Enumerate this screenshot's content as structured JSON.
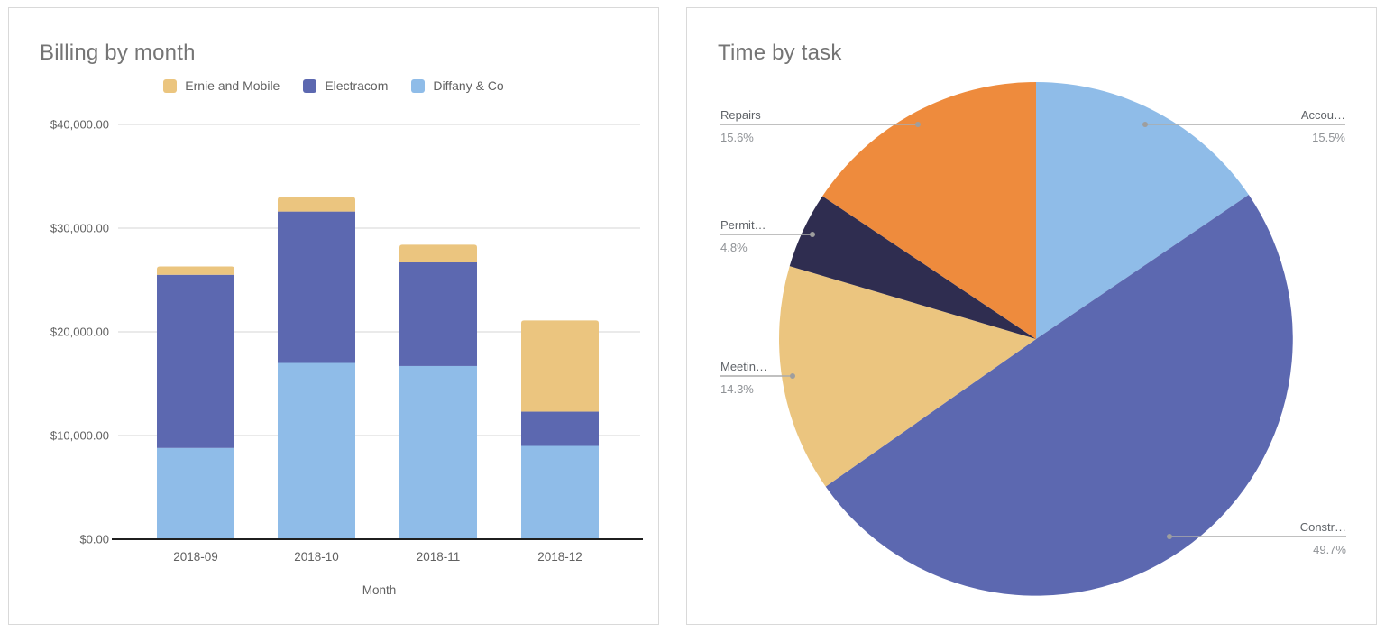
{
  "panels": {
    "billing": {
      "title": "Billing by month",
      "x_axis_title": "Month"
    },
    "time": {
      "title": "Time by task"
    }
  },
  "legend": [
    {
      "label": "Ernie and Mobile",
      "color_key": "tan"
    },
    {
      "label": "Electracom",
      "color_key": "indigo"
    },
    {
      "label": "Diffany & Co",
      "color_key": "light_blue"
    }
  ],
  "colors": {
    "tan": "#EBC57F",
    "indigo": "#5C68B0",
    "light_blue": "#8FBCE8",
    "navy": "#2F2D50",
    "orange": "#EE8B3D",
    "grid": "#e3e3e3",
    "axis": "#1f1f1f",
    "tick_text": "#616161",
    "title_text": "#757575",
    "slice_label_text": "#5f6368",
    "percent_text": "#8f9296",
    "leader_line": "#ababab",
    "leader_dot": "#9e9e9e"
  },
  "chart_data": [
    {
      "type": "bar",
      "stacked": true,
      "title": "Billing by month",
      "xlabel": "Month",
      "ylabel": "",
      "categories": [
        "2018-09",
        "2018-10",
        "2018-11",
        "2018-12"
      ],
      "series": [
        {
          "name": "Diffany & Co",
          "color_key": "light_blue",
          "values": [
            8800,
            17000,
            16700,
            9000
          ]
        },
        {
          "name": "Electracom",
          "color_key": "indigo",
          "values": [
            16700,
            14600,
            10000,
            3300
          ]
        },
        {
          "name": "Ernie and Mobile",
          "color_key": "tan",
          "values": [
            800,
            1400,
            1700,
            8800
          ]
        }
      ],
      "stack_totals": [
        26300,
        33000,
        28400,
        21100
      ],
      "y_tick_labels": [
        "$0.00",
        "$10,000.00",
        "$20,000.00",
        "$30,000.00",
        "$40,000.00"
      ],
      "y_tick_values": [
        0,
        10000,
        20000,
        30000,
        40000
      ],
      "ylim": [
        0,
        40000
      ],
      "grid": true,
      "legend_position": "top"
    },
    {
      "type": "pie",
      "title": "Time by task",
      "start_angle_deg": 0,
      "direction": "clockwise",
      "slices": [
        {
          "label": "Accou…",
          "percent_label": "15.5%",
          "value": 15.5,
          "color_key": "light_blue"
        },
        {
          "label": "Constr…",
          "percent_label": "49.7%",
          "value": 49.7,
          "color_key": "indigo"
        },
        {
          "label": "Meetin…",
          "percent_label": "14.3%",
          "value": 14.3,
          "color_key": "tan"
        },
        {
          "label": "Permit…",
          "percent_label": "4.8%",
          "value": 4.8,
          "color_key": "navy"
        },
        {
          "label": "Repairs",
          "percent_label": "15.6%",
          "value": 15.6,
          "color_key": "orange"
        }
      ]
    }
  ]
}
